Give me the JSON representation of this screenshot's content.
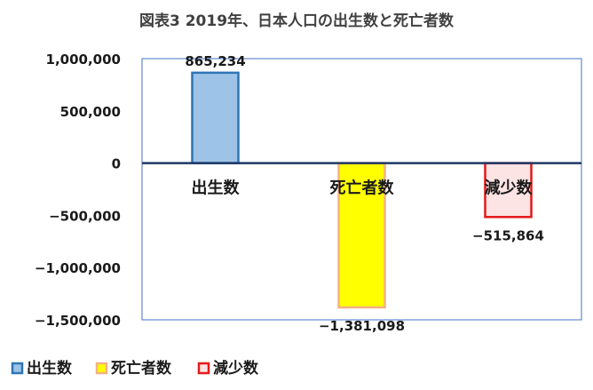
{
  "chart_data": {
    "type": "bar",
    "title": "図表3 2019年、日本人口の出生数と死亡者数",
    "xlabel": "",
    "ylabel": "",
    "ylim": [
      -1500000,
      1000000
    ],
    "yticks": [
      1000000,
      500000,
      0,
      -500000,
      -1000000,
      -1500000
    ],
    "ytick_labels": [
      "1,000,000",
      "500,000",
      "0",
      "−500,000",
      "−1,000,000",
      "−1,500,000"
    ],
    "categories": [
      "出生数",
      "死亡者数",
      "減少数"
    ],
    "series": [
      {
        "name": "出生数",
        "values": [
          865234,
          null,
          null
        ],
        "fill": "#9dc3e6",
        "stroke": "#2e75b6"
      },
      {
        "name": "死亡者数",
        "values": [
          null,
          -1381098,
          null
        ],
        "fill": "#ffff00",
        "stroke": "#f4b183"
      },
      {
        "name": "減少数",
        "values": [
          null,
          null,
          -515864
        ],
        "fill": "#fce4e4",
        "stroke": "#e31a1a"
      }
    ],
    "data_labels": [
      "865,234",
      "−1,381,098",
      "−515,864"
    ],
    "legend": {
      "placement": "bottom-left",
      "items": [
        {
          "label": "出生数",
          "fill": "#9dc3e6",
          "stroke": "#2e75b6"
        },
        {
          "label": "死亡者数",
          "fill": "#ffff00",
          "stroke": "#f4b183"
        },
        {
          "label": "減少数",
          "fill": "#fce4e4",
          "stroke": "#e31a1a"
        }
      ]
    },
    "grid": false,
    "colors": {
      "plot_border": "#4472c4",
      "zero_line": "#1f3864"
    }
  }
}
